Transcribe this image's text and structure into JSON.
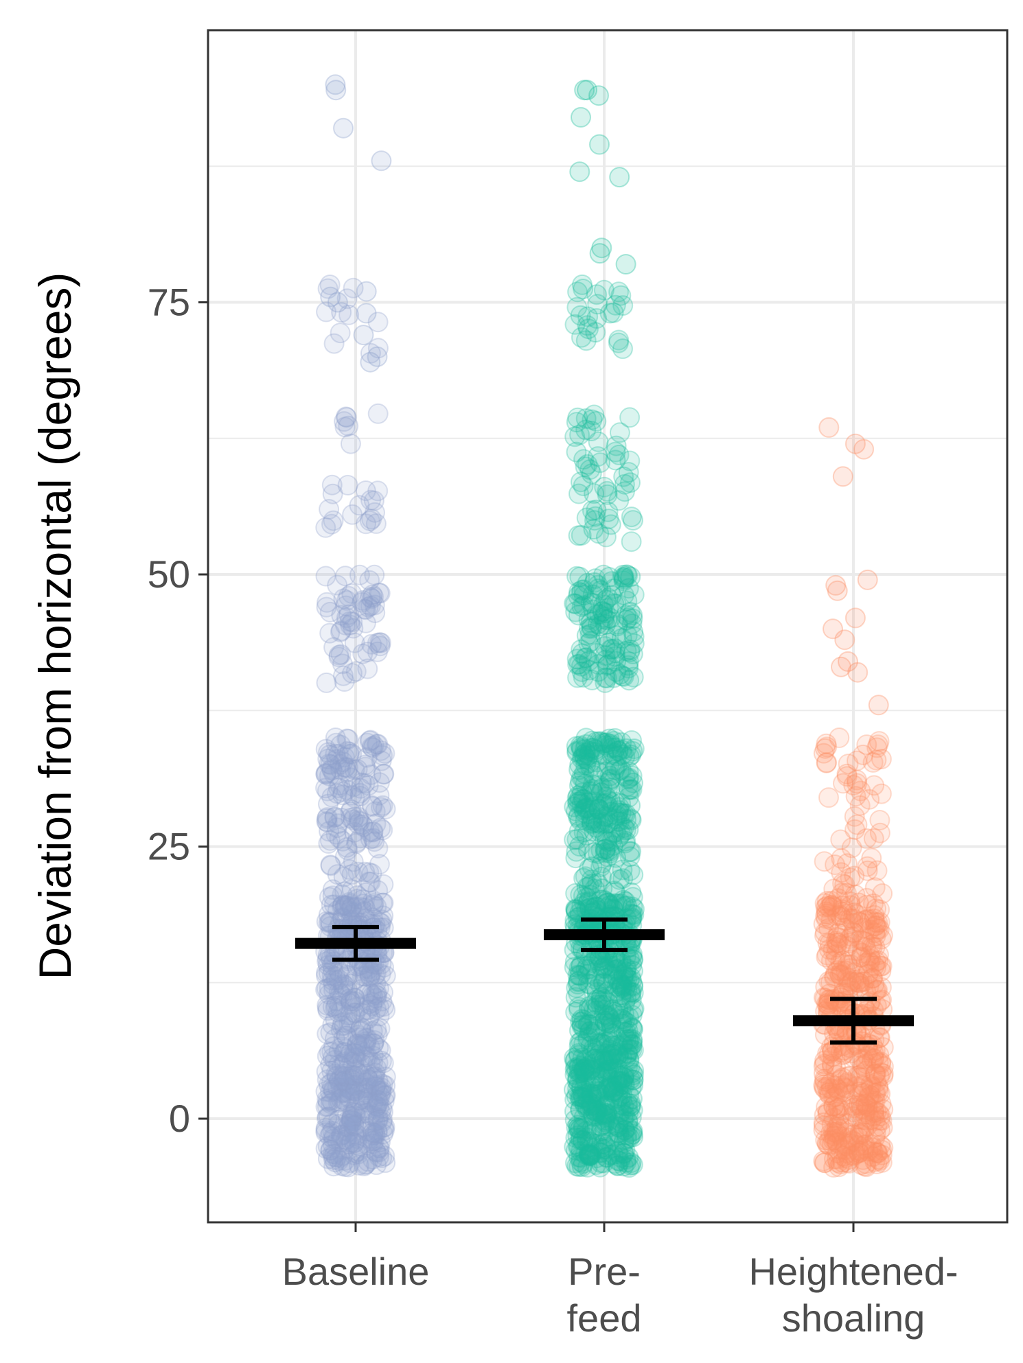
{
  "chart_data": {
    "type": "scatter",
    "subtype": "jittered strip plot with mean and error bars",
    "title": "",
    "xlabel": "",
    "ylabel": "Deviation from horizontal (degrees)",
    "ylim": [
      -9.5,
      99
    ],
    "y_ticks": [
      0,
      25,
      50,
      75
    ],
    "y_tick_labels": [
      "0",
      "25",
      "50",
      "75"
    ],
    "y_minor_gridlines": [
      12.5,
      37.5,
      62.5,
      87.5
    ],
    "grid": true,
    "legend": "none",
    "categories": [
      "Baseline",
      "Pre-feed",
      "Heightened-shoaling"
    ],
    "category_label_lines": [
      [
        "Baseline"
      ],
      [
        "Pre-",
        "feed"
      ],
      [
        "Heightened-",
        "shoaling"
      ]
    ],
    "series": [
      {
        "name": "Baseline",
        "color": "#8DA0CB",
        "mean": 16.1,
        "error_low": 14.6,
        "error_high": 17.6,
        "dense_ranges": [
          [
            -4.5,
            6,
            260
          ],
          [
            6,
            14,
            140
          ],
          [
            14,
            20,
            140
          ],
          [
            20,
            26,
            40
          ],
          [
            26,
            35,
            110
          ],
          [
            40,
            50,
            60
          ],
          [
            53,
            65,
            25
          ],
          [
            70,
            77,
            12
          ]
        ],
        "points": [
          95,
          94.5,
          91,
          88,
          76,
          75.5,
          75,
          74,
          72,
          70,
          69.5
        ]
      },
      {
        "name": "Pre-feed",
        "color": "#1BBC9B",
        "mean": 16.9,
        "error_low": 15.5,
        "error_high": 18.3,
        "dense_ranges": [
          [
            -4.5,
            6,
            320
          ],
          [
            6,
            14,
            180
          ],
          [
            14,
            20,
            170
          ],
          [
            20,
            26,
            60
          ],
          [
            26,
            35,
            180
          ],
          [
            40,
            50,
            130
          ],
          [
            53,
            65,
            55
          ],
          [
            70,
            77,
            25
          ]
        ],
        "points": [
          94.5,
          94.5,
          94,
          92,
          89.5,
          87,
          86.5,
          80,
          79.5,
          78.5
        ]
      },
      {
        "name": "Heightened-shoaling",
        "color": "#FC8D62",
        "mean": 9.0,
        "error_low": 7.0,
        "error_high": 11.0,
        "dense_ranges": [
          [
            -4.5,
            6,
            230
          ],
          [
            6,
            14,
            140
          ],
          [
            14,
            20,
            110
          ],
          [
            20,
            26,
            25
          ],
          [
            26,
            35,
            35
          ]
        ],
        "points": [
          63.5,
          62,
          61.5,
          59,
          49.5,
          49,
          48.5,
          46,
          45,
          44,
          42,
          41.5,
          41,
          38
        ]
      }
    ]
  }
}
